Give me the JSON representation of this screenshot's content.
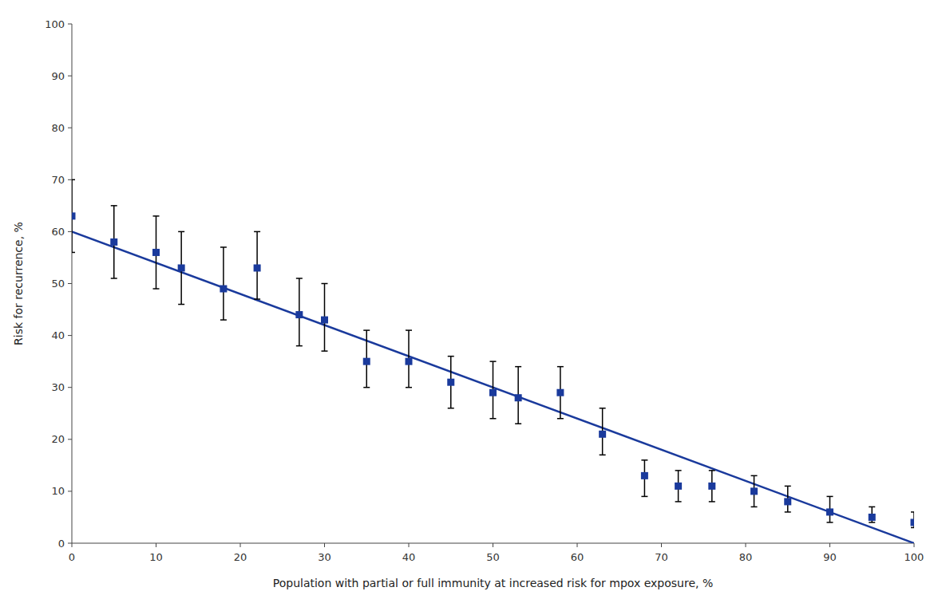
{
  "chart_data": {
    "type": "scatter",
    "xlabel": "Population with partial or full immunity at increased risk for mpox exposure, %",
    "ylabel": "Risk for recurrence, %",
    "xlim": [
      0,
      100
    ],
    "ylim": [
      0,
      100
    ],
    "xticks": [
      0,
      10,
      20,
      30,
      40,
      50,
      60,
      70,
      80,
      90,
      100
    ],
    "yticks": [
      0,
      10,
      20,
      30,
      40,
      50,
      60,
      70,
      80,
      90,
      100
    ],
    "series": [
      {
        "type": "line",
        "color": "#1a3a9c",
        "x": [
          0,
          100
        ],
        "values": [
          60,
          0
        ]
      },
      {
        "type": "scatter",
        "color": "#1a3a9c",
        "marker": "square",
        "x": [
          0,
          5,
          10,
          13,
          18,
          22,
          27,
          30,
          35,
          40,
          45,
          50,
          53,
          58,
          63,
          68,
          72,
          76,
          81,
          85,
          90,
          95,
          100
        ],
        "values": [
          63,
          58,
          56,
          53,
          49,
          53,
          44,
          43,
          35,
          35,
          31,
          29,
          28,
          29,
          21,
          13,
          11,
          11,
          10,
          8,
          6,
          5,
          4
        ],
        "error_up": [
          7,
          7,
          7,
          7,
          8,
          7,
          7,
          7,
          6,
          6,
          5,
          6,
          6,
          5,
          5,
          3,
          3,
          3,
          3,
          3,
          3,
          2,
          2
        ],
        "error_down": [
          7,
          7,
          7,
          7,
          6,
          6,
          6,
          6,
          5,
          5,
          5,
          5,
          5,
          5,
          4,
          4,
          3,
          3,
          3,
          2,
          2,
          1,
          1
        ]
      }
    ]
  }
}
